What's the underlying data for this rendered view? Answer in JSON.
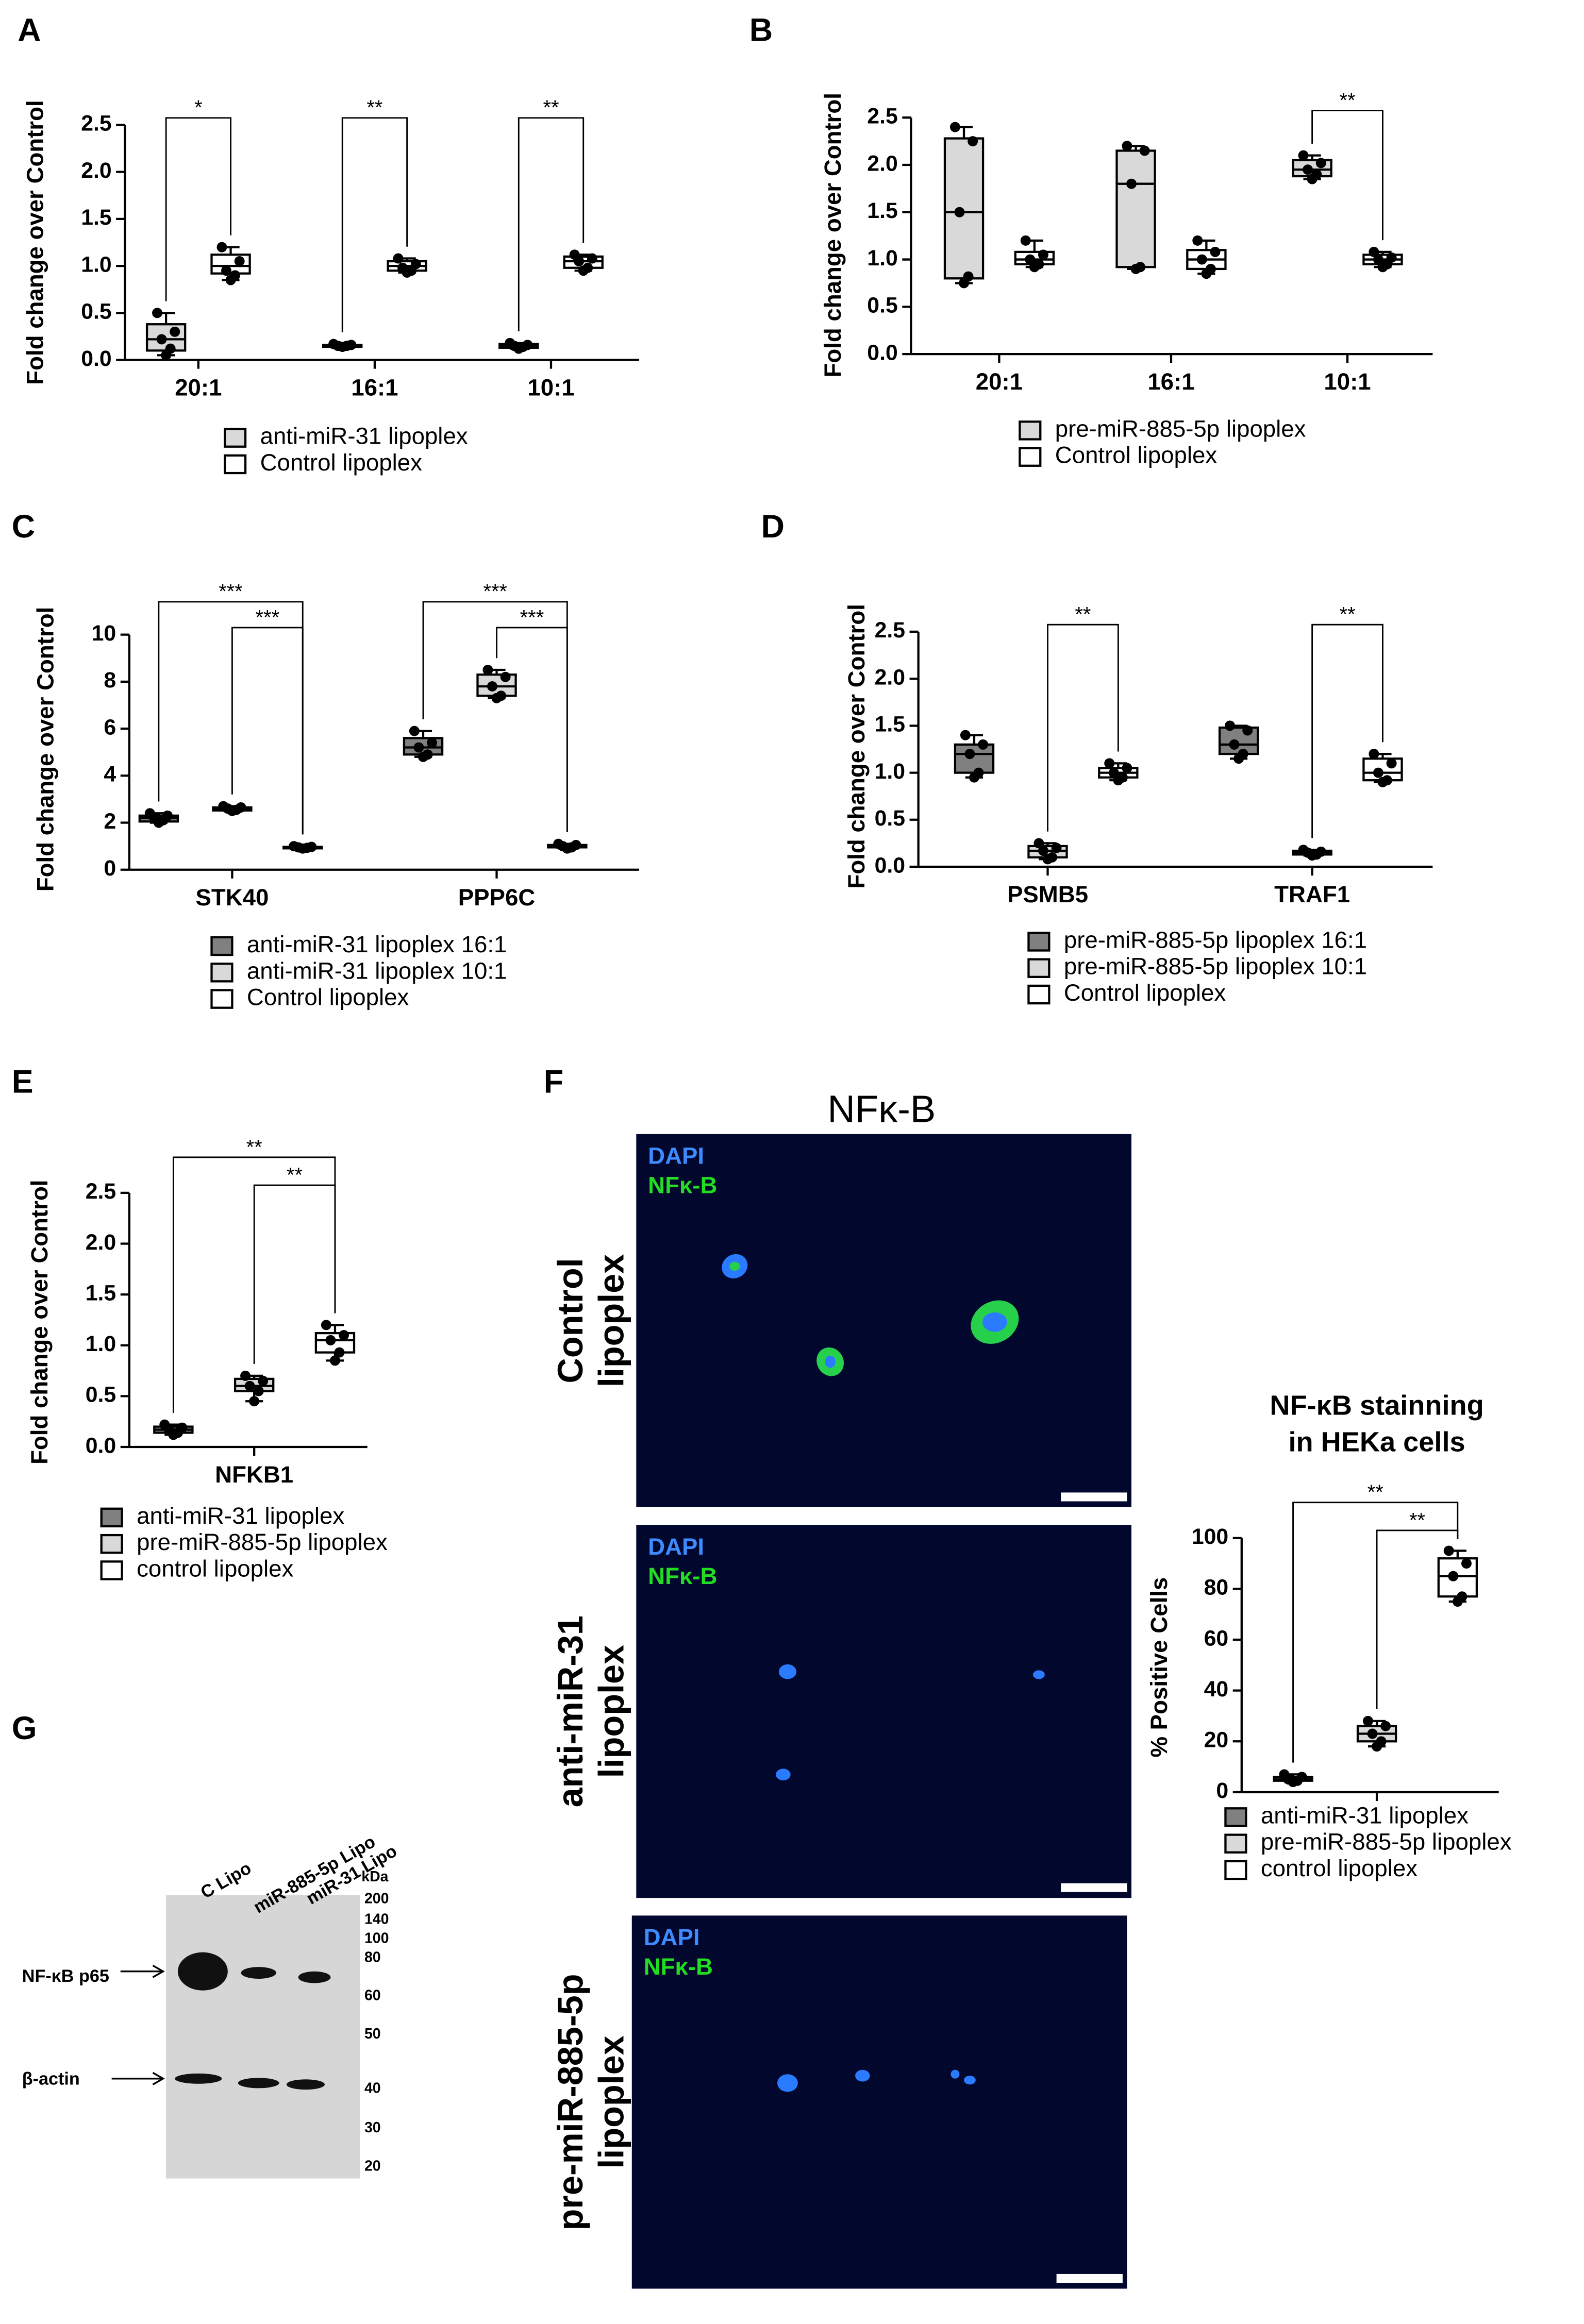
{
  "chart_data": [
    {
      "type": "box",
      "panel": "A",
      "ylabel": "Fold change over Control",
      "categories": [
        "20:1",
        "16:1",
        "10:1"
      ],
      "ylim": [
        0,
        2.5
      ],
      "yticks": [
        {
          "value": 0,
          "label": "0.0"
        },
        0.5,
        {
          "value": 1,
          "label": "1.0"
        },
        1.5,
        {
          "value": 2,
          "label": "2.0"
        },
        2.5
      ],
      "series": [
        {
          "name": "anti-miR-31 lipoplex",
          "color": "#d9d9d9",
          "boxes": [
            {
              "min": 0.05,
              "q1": 0.1,
              "median": 0.22,
              "q3": 0.38,
              "max": 0.5,
              "points": [
                0.5,
                0.3,
                0.22,
                0.12,
                0.05
              ]
            },
            {
              "min": 0.13,
              "q1": 0.14,
              "median": 0.15,
              "q3": 0.16,
              "max": 0.17,
              "points": [
                0.17,
                0.16,
                0.15,
                0.15,
                0.14
              ]
            },
            {
              "min": 0.12,
              "q1": 0.13,
              "median": 0.15,
              "q3": 0.17,
              "max": 0.18,
              "points": [
                0.18,
                0.16,
                0.15,
                0.14,
                0.12
              ]
            }
          ]
        },
        {
          "name": "Control lipoplex",
          "color": "#ffffff",
          "boxes": [
            {
              "min": 0.85,
              "q1": 0.92,
              "median": 1.0,
              "q3": 1.12,
              "max": 1.2,
              "points": [
                1.2,
                1.05,
                0.95,
                0.9,
                0.85
              ]
            },
            {
              "min": 0.93,
              "q1": 0.95,
              "median": 1.0,
              "q3": 1.05,
              "max": 1.08,
              "points": [
                1.08,
                1.02,
                0.98,
                0.95,
                0.93
              ]
            },
            {
              "min": 0.95,
              "q1": 0.98,
              "median": 1.05,
              "q3": 1.1,
              "max": 1.12,
              "points": [
                1.12,
                1.08,
                1.05,
                0.98,
                0.95
              ]
            }
          ]
        }
      ],
      "brackets": [
        {
          "label": "*",
          "from": [
            0,
            0
          ],
          "to": [
            1,
            0
          ]
        },
        {
          "label": "**",
          "from": [
            0,
            1
          ],
          "to": [
            1,
            1
          ]
        },
        {
          "label": "**",
          "from": [
            0,
            2
          ],
          "to": [
            1,
            2
          ]
        }
      ]
    },
    {
      "type": "box",
      "panel": "B",
      "ylabel": "Fold change over Control",
      "categories": [
        "20:1",
        "16:1",
        "10:1"
      ],
      "ylim": [
        0,
        2.5
      ],
      "yticks": [
        {
          "value": 0,
          "label": "0.0"
        },
        0.5,
        {
          "value": 1,
          "label": "1.0"
        },
        1.5,
        {
          "value": 2,
          "label": "2.0"
        },
        2.5
      ],
      "series": [
        {
          "name": "pre-miR-885-5p lipoplex",
          "color": "#d9d9d9",
          "boxes": [
            {
              "min": 0.75,
              "q1": 0.8,
              "median": 1.5,
              "q3": 2.28,
              "max": 2.4,
              "points": [
                2.4,
                2.25,
                1.5,
                0.82,
                0.75
              ]
            },
            {
              "min": 0.9,
              "q1": 0.92,
              "median": 1.8,
              "q3": 2.15,
              "max": 2.2,
              "points": [
                2.2,
                2.15,
                1.8,
                0.92,
                0.9
              ]
            },
            {
              "min": 1.85,
              "q1": 1.88,
              "median": 1.95,
              "q3": 2.05,
              "max": 2.1,
              "points": [
                2.1,
                2.02,
                1.95,
                1.9,
                1.85
              ]
            }
          ]
        },
        {
          "name": "Control lipoplex",
          "color": "#ffffff",
          "boxes": [
            {
              "min": 0.92,
              "q1": 0.95,
              "median": 1.0,
              "q3": 1.08,
              "max": 1.2,
              "points": [
                1.2,
                1.05,
                1.0,
                0.95,
                0.92
              ]
            },
            {
              "min": 0.85,
              "q1": 0.9,
              "median": 1.0,
              "q3": 1.1,
              "max": 1.2,
              "points": [
                1.2,
                1.08,
                1.0,
                0.9,
                0.85
              ]
            },
            {
              "min": 0.92,
              "q1": 0.95,
              "median": 1.0,
              "q3": 1.05,
              "max": 1.08,
              "points": [
                1.08,
                1.02,
                1.0,
                0.95,
                0.92
              ]
            }
          ]
        }
      ],
      "brackets": [
        {
          "label": "**",
          "from": [
            0,
            2
          ],
          "to": [
            1,
            2
          ]
        }
      ]
    },
    {
      "type": "box",
      "panel": "C",
      "ylabel": "Fold change over Control",
      "categories": [
        "STK40",
        "PPP6C"
      ],
      "ylim": [
        0,
        10
      ],
      "yticks": [
        0,
        2,
        4,
        6,
        8,
        10
      ],
      "series": [
        {
          "name": "anti-miR-31 lipoplex 16:1",
          "color": "#808080",
          "boxes": [
            {
              "min": 2.0,
              "q1": 2.05,
              "median": 2.2,
              "q3": 2.3,
              "max": 2.4,
              "points": [
                2.4,
                2.3,
                2.2,
                2.1,
                2.0
              ]
            },
            {
              "min": 4.8,
              "q1": 4.9,
              "median": 5.2,
              "q3": 5.6,
              "max": 5.9,
              "points": [
                5.9,
                5.4,
                5.2,
                4.9,
                4.8
              ]
            }
          ]
        },
        {
          "name": "anti-miR-31 lipoplex 10:1",
          "color": "#d9d9d9",
          "boxes": [
            {
              "min": 2.5,
              "q1": 2.52,
              "median": 2.6,
              "q3": 2.65,
              "max": 2.7,
              "points": [
                2.7,
                2.65,
                2.6,
                2.55,
                2.5
              ]
            },
            {
              "min": 7.3,
              "q1": 7.4,
              "median": 7.8,
              "q3": 8.3,
              "max": 8.5,
              "points": [
                8.5,
                8.2,
                7.8,
                7.4,
                7.3
              ]
            }
          ]
        },
        {
          "name": "Control lipoplex",
          "color": "#ffffff",
          "boxes": [
            {
              "min": 0.9,
              "q1": 0.93,
              "median": 0.95,
              "q3": 0.97,
              "max": 1.0,
              "points": [
                1.0,
                0.97,
                0.95,
                0.93,
                0.9
              ]
            },
            {
              "min": 0.9,
              "q1": 0.95,
              "median": 1.0,
              "q3": 1.05,
              "max": 1.1,
              "points": [
                1.1,
                1.05,
                1.0,
                0.95,
                0.9
              ]
            }
          ]
        }
      ],
      "brackets": [
        {
          "label": "***",
          "from": [
            0,
            0
          ],
          "to": [
            2,
            0
          ]
        },
        {
          "label": "***",
          "from": [
            1,
            0
          ],
          "to": [
            2,
            0
          ]
        },
        {
          "label": "***",
          "from": [
            0,
            1
          ],
          "to": [
            2,
            1
          ]
        },
        {
          "label": "***",
          "from": [
            1,
            1
          ],
          "to": [
            2,
            1
          ]
        }
      ]
    },
    {
      "type": "box",
      "panel": "D",
      "ylabel": "Fold change over Control",
      "categories": [
        "PSMB5",
        "TRAF1"
      ],
      "ylim": [
        0,
        2.5
      ],
      "yticks": [
        {
          "value": 0,
          "label": "0.0"
        },
        0.5,
        {
          "value": 1,
          "label": "1.0"
        },
        1.5,
        {
          "value": 2,
          "label": "2.0"
        },
        2.5
      ],
      "series": [
        {
          "name": "pre-miR-885-5p lipoplex 16:1",
          "color": "#808080",
          "boxes": [
            {
              "min": 0.95,
              "q1": 1.0,
              "median": 1.2,
              "q3": 1.3,
              "max": 1.4,
              "points": [
                1.4,
                1.3,
                1.2,
                1.0,
                0.95
              ]
            },
            {
              "min": 1.15,
              "q1": 1.2,
              "median": 1.3,
              "q3": 1.48,
              "max": 1.5,
              "points": [
                1.5,
                1.45,
                1.3,
                1.2,
                1.15
              ]
            }
          ]
        },
        {
          "name": "pre-miR-885-5p lipoplex 10:1",
          "color": "#d9d9d9",
          "boxes": [
            {
              "min": 0.08,
              "q1": 0.1,
              "median": 0.17,
              "q3": 0.22,
              "max": 0.25,
              "points": [
                0.25,
                0.2,
                0.17,
                0.1,
                0.08
              ]
            },
            {
              "min": 0.12,
              "q1": 0.13,
              "median": 0.15,
              "q3": 0.17,
              "max": 0.18,
              "points": [
                0.18,
                0.16,
                0.15,
                0.13,
                0.12
              ]
            }
          ]
        },
        {
          "name": "Control lipoplex",
          "color": "#ffffff",
          "boxes": [
            {
              "min": 0.92,
              "q1": 0.95,
              "median": 1.0,
              "q3": 1.05,
              "max": 1.1,
              "points": [
                1.1,
                1.05,
                1.0,
                0.95,
                0.92
              ]
            },
            {
              "min": 0.9,
              "q1": 0.92,
              "median": 1.0,
              "q3": 1.15,
              "max": 1.2,
              "points": [
                1.2,
                1.1,
                1.0,
                0.92,
                0.9
              ]
            }
          ]
        }
      ],
      "brackets": [
        {
          "label": "**",
          "from": [
            1,
            0
          ],
          "to": [
            2,
            0
          ]
        },
        {
          "label": "**",
          "from": [
            1,
            1
          ],
          "to": [
            2,
            1
          ]
        }
      ]
    },
    {
      "type": "box",
      "panel": "E",
      "ylabel": "Fold change over Control",
      "categories": [
        "NFKB1"
      ],
      "ylim": [
        0,
        2.5
      ],
      "yticks": [
        {
          "value": 0,
          "label": "0.0"
        },
        0.5,
        {
          "value": 1,
          "label": "1.0"
        },
        1.5,
        {
          "value": 2,
          "label": "2.0"
        },
        2.5
      ],
      "series": [
        {
          "name": "anti-miR-31 lipoplex",
          "color": "#808080",
          "boxes": [
            {
              "min": 0.12,
              "q1": 0.14,
              "median": 0.17,
              "q3": 0.2,
              "max": 0.22,
              "points": [
                0.22,
                0.19,
                0.17,
                0.14,
                0.12
              ]
            }
          ]
        },
        {
          "name": "pre-miR-885-5p lipoplex",
          "color": "#d9d9d9",
          "boxes": [
            {
              "min": 0.45,
              "q1": 0.55,
              "median": 0.6,
              "q3": 0.67,
              "max": 0.7,
              "points": [
                0.7,
                0.65,
                0.6,
                0.55,
                0.45
              ]
            }
          ]
        },
        {
          "name": "control lipoplex",
          "color": "#ffffff",
          "boxes": [
            {
              "min": 0.85,
              "q1": 0.93,
              "median": 1.05,
              "q3": 1.12,
              "max": 1.2,
              "points": [
                1.2,
                1.1,
                1.05,
                0.93,
                0.85
              ]
            }
          ]
        }
      ],
      "brackets": [
        {
          "label": "**",
          "from": [
            0,
            0
          ],
          "to": [
            2,
            0
          ]
        },
        {
          "label": "**",
          "from": [
            1,
            0
          ],
          "to": [
            2,
            0
          ]
        }
      ]
    },
    {
      "type": "box",
      "title": [
        "NF-κB stainning",
        "in HEKa cells"
      ],
      "ylabel": "% Positive Cells",
      "categories": [
        null
      ],
      "ylim": [
        0,
        100
      ],
      "yticks": [
        0,
        20,
        40,
        60,
        80,
        100
      ],
      "series": [
        {
          "name": "anti-miR-31 lipoplex",
          "color": "#808080",
          "boxes": [
            {
              "min": 4,
              "q1": 4.5,
              "median": 5,
              "q3": 6,
              "max": 7,
              "points": [
                7,
                6,
                5,
                4.5,
                4
              ]
            }
          ]
        },
        {
          "name": "pre-miR-885-5p lipoplex",
          "color": "#d9d9d9",
          "boxes": [
            {
              "min": 18,
              "q1": 20,
              "median": 23,
              "q3": 26,
              "max": 28,
              "points": [
                28,
                26,
                23,
                20,
                18
              ]
            }
          ]
        },
        {
          "name": "control lipoplex",
          "color": "#ffffff",
          "boxes": [
            {
              "min": 75,
              "q1": 77,
              "median": 85,
              "q3": 92,
              "max": 95,
              "points": [
                95,
                90,
                85,
                77,
                75
              ]
            }
          ]
        }
      ],
      "brackets": [
        {
          "label": "**",
          "from": [
            0,
            0
          ],
          "to": [
            2,
            0
          ]
        },
        {
          "label": "**",
          "from": [
            1,
            0
          ],
          "to": [
            2,
            0
          ]
        }
      ]
    }
  ],
  "figure_f": {
    "panel": "F",
    "heading": "NFκ-B",
    "rows": [
      {
        "label": [
          "Control",
          "lipoplex"
        ],
        "channels": [
          "DAPI",
          "NFκ-B"
        ]
      },
      {
        "label": [
          "anti-miR-31",
          "lipoplex"
        ],
        "channels": [
          "DAPI",
          "NFκ-B"
        ]
      },
      {
        "label": [
          "pre-miR-885-5p",
          "lipoplex"
        ],
        "channels": [
          "DAPI",
          "NFκ-B"
        ]
      }
    ]
  },
  "figure_g": {
    "panel": "G",
    "lanes": [
      "C Lipo",
      "miR-885-5p Lipo",
      "miR-31 Lipo"
    ],
    "unit": "kDa",
    "markers": [
      200,
      140,
      100,
      80,
      60,
      50,
      40,
      30,
      20
    ],
    "bands": [
      "NF-κB p65",
      "β-actin"
    ]
  }
}
